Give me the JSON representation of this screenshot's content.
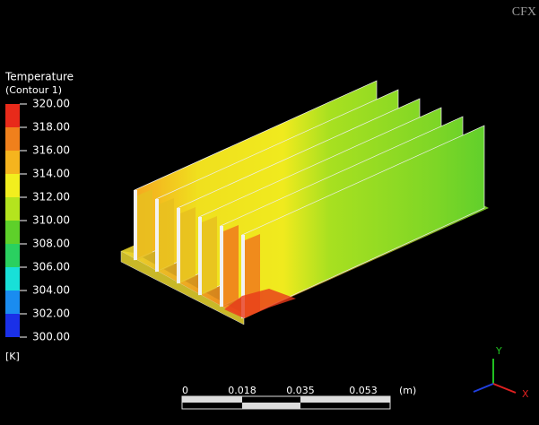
{
  "logo": "CFX",
  "legend": {
    "title": "Temperature",
    "subtitle": "(Contour 1)",
    "levels": [
      "320.00",
      "318.00",
      "316.00",
      "314.00",
      "312.00",
      "310.00",
      "308.00",
      "306.00",
      "304.00",
      "302.00",
      "300.00"
    ],
    "band_colors": [
      "#e82a1a",
      "#f0801c",
      "#f5b41e",
      "#f2ee1e",
      "#b4e41e",
      "#5ed02a",
      "#2ad060",
      "#18e0d8",
      "#1a8cf0",
      "#1a30e8"
    ],
    "unit": "[K]"
  },
  "scale_bar": {
    "labels": [
      "0",
      "0.018",
      "0.035",
      "0.053"
    ],
    "unit": "(m)"
  },
  "axes": {
    "y": "Y",
    "x": "X"
  }
}
